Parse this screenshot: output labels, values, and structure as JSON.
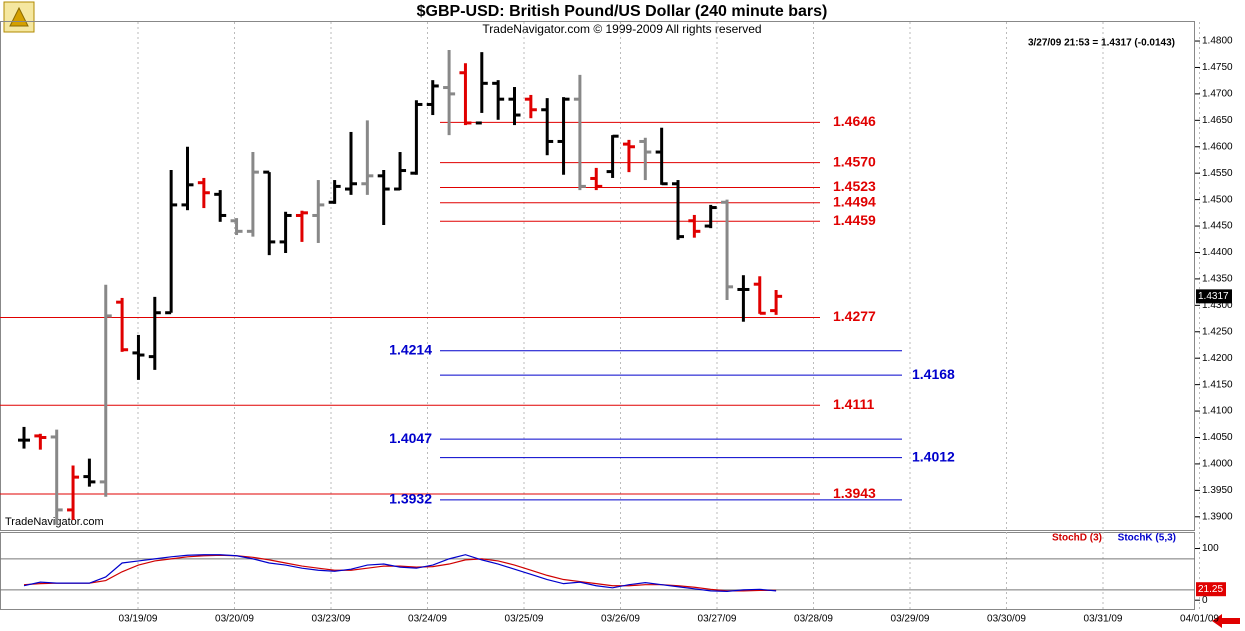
{
  "chart_data": {
    "type": "ohlc",
    "title": "$GBP-USD:  British Pound/US Dollar  (240 minute bars)",
    "subtitle": "TradeNavigator.com © 1999-2009 All rights reserved",
    "quote_label": "3/27/09 21:53 = 1.4317 (-0.0143)",
    "watermark": "TradeNavigator.com",
    "ylim": [
      1.3875,
      1.4836
    ],
    "yticks": [
      {
        "value": 1.39,
        "label": "1.3900"
      },
      {
        "value": 1.395,
        "label": "1.3950"
      },
      {
        "value": 1.4,
        "label": "1.4000"
      },
      {
        "value": 1.405,
        "label": "1.4050"
      },
      {
        "value": 1.41,
        "label": "1.4100"
      },
      {
        "value": 1.415,
        "label": "1.4150"
      },
      {
        "value": 1.42,
        "label": "1.4200"
      },
      {
        "value": 1.425,
        "label": "1.4250"
      },
      {
        "value": 1.43,
        "label": "1.4300"
      },
      {
        "value": 1.435,
        "label": "1.4350"
      },
      {
        "value": 1.44,
        "label": "1.4400"
      },
      {
        "value": 1.445,
        "label": "1.4450"
      },
      {
        "value": 1.45,
        "label": "1.4500"
      },
      {
        "value": 1.455,
        "label": "1.4550"
      },
      {
        "value": 1.46,
        "label": "1.4600"
      },
      {
        "value": 1.465,
        "label": "1.4650"
      },
      {
        "value": 1.47,
        "label": "1.4700"
      },
      {
        "value": 1.475,
        "label": "1.4750"
      },
      {
        "value": 1.48,
        "label": "1.4800"
      }
    ],
    "x_labels": [
      "03/19/09",
      "03/20/09",
      "03/23/09",
      "03/24/09",
      "03/25/09",
      "03/26/09",
      "03/27/09",
      "03/28/09",
      "03/29/09",
      "03/30/09",
      "03/31/09",
      "04/01/09"
    ],
    "ohlc": {
      "open": [
        1.4045,
        1.4053,
        1.4051,
        1.3913,
        1.3976,
        1.3966,
        1.4306,
        1.421,
        1.4203,
        1.4286,
        1.449,
        1.4532,
        1.451,
        1.446,
        1.444,
        1.4552,
        1.442,
        1.447,
        1.447,
        1.4495,
        1.452,
        1.453,
        1.4545,
        1.452,
        1.455,
        1.468,
        1.4712,
        1.474,
        1.4645,
        1.472,
        1.469,
        1.469,
        1.467,
        1.461,
        1.469,
        1.454,
        1.4553,
        1.4605,
        1.461,
        1.459,
        1.453,
        1.446,
        1.445,
        1.4495,
        1.433,
        1.434,
        1.429
      ],
      "high": [
        1.407,
        1.4057,
        1.4065,
        1.3997,
        1.401,
        1.4339,
        1.4314,
        1.4244,
        1.4316,
        1.4556,
        1.46,
        1.4541,
        1.4518,
        1.4465,
        1.459,
        1.4552,
        1.4477,
        1.4479,
        1.4537,
        1.4537,
        1.4628,
        1.465,
        1.4556,
        1.459,
        1.4688,
        1.4726,
        1.4783,
        1.4758,
        1.4779,
        1.4726,
        1.4713,
        1.4698,
        1.4692,
        1.4694,
        1.4736,
        1.456,
        1.4622,
        1.4613,
        1.4617,
        1.4636,
        1.4537,
        1.4471,
        1.449,
        1.45,
        1.4357,
        1.4355,
        1.4329
      ],
      "low": [
        1.4029,
        1.4027,
        1.3885,
        1.3894,
        1.3957,
        1.3938,
        1.4212,
        1.4159,
        1.4178,
        1.4286,
        1.448,
        1.4484,
        1.4458,
        1.4433,
        1.443,
        1.4395,
        1.4399,
        1.442,
        1.4418,
        1.4492,
        1.4509,
        1.4509,
        1.4452,
        1.4518,
        1.4547,
        1.466,
        1.4622,
        1.4641,
        1.4664,
        1.4651,
        1.4641,
        1.4654,
        1.4584,
        1.4547,
        1.4518,
        1.4518,
        1.4541,
        1.4552,
        1.4537,
        1.4528,
        1.4424,
        1.4428,
        1.4446,
        1.431,
        1.4269,
        1.4284,
        1.4282
      ],
      "close": [
        1.4045,
        1.405,
        1.3913,
        1.3975,
        1.3966,
        1.428,
        1.4216,
        1.4206,
        1.4286,
        1.449,
        1.4528,
        1.4513,
        1.447,
        1.444,
        1.4552,
        1.442,
        1.447,
        1.4475,
        1.449,
        1.4525,
        1.453,
        1.4545,
        1.452,
        1.4555,
        1.468,
        1.4715,
        1.47,
        1.4645,
        1.472,
        1.469,
        1.466,
        1.467,
        1.461,
        1.469,
        1.4525,
        1.4525,
        1.462,
        1.46,
        1.459,
        1.453,
        1.443,
        1.444,
        1.4485,
        1.4335,
        1.433,
        1.4285,
        1.4317
      ],
      "colors": [
        "#000000",
        "#e00000",
        "#888888",
        "#e00000",
        "#000000",
        "#888888",
        "#e00000",
        "#000000",
        "#000000",
        "#000000",
        "#000000",
        "#e00000",
        "#000000",
        "#888888",
        "#888888",
        "#000000",
        "#000000",
        "#e00000",
        "#888888",
        "#000000",
        "#000000",
        "#888888",
        "#000000",
        "#000000",
        "#000000",
        "#000000",
        "#888888",
        "#e00000",
        "#000000",
        "#000000",
        "#000000",
        "#e00000",
        "#000000",
        "#000000",
        "#888888",
        "#e00000",
        "#000000",
        "#e00000",
        "#888888",
        "#000000",
        "#000000",
        "#e00000",
        "#000000",
        "#888888",
        "#000000",
        "#e00000",
        "#e00000"
      ]
    },
    "last_price": {
      "value": 1.4317,
      "label": "1.4317"
    },
    "red_levels": {
      "color": "#e00000",
      "values": [
        1.4646,
        1.457,
        1.4523,
        1.4494,
        1.4459,
        1.4277,
        1.4111,
        1.3943
      ],
      "value_labels": [
        "1.4646",
        "1.4570",
        "1.4523",
        "1.4494",
        "1.4459",
        "1.4277",
        "1.4111",
        "1.3943"
      ]
    },
    "blue_levels": {
      "color": "#0000cc",
      "values": [
        1.4214,
        1.4168,
        1.4047,
        1.4012,
        1.3932
      ],
      "value_labels": [
        "1.4214",
        "1.4168",
        "1.4047",
        "1.4012",
        "1.3932"
      ]
    },
    "stochastic": {
      "ylim": [
        -19,
        132
      ],
      "yticks": [
        100,
        0
      ],
      "levels": [
        80,
        20
      ],
      "series": [
        {
          "name": "StochD (3)",
          "color": "#d00000",
          "values": [
            30,
            32,
            33,
            33,
            33,
            38,
            55,
            68,
            76,
            80,
            84,
            86,
            87,
            86,
            83,
            78,
            72,
            66,
            62,
            58,
            58,
            62,
            66,
            66,
            64,
            65,
            70,
            78,
            80,
            76,
            68,
            58,
            48,
            40,
            36,
            32,
            28,
            28,
            30,
            30,
            28,
            25,
            21,
            18,
            18,
            19,
            19
          ]
        },
        {
          "name": "StochK (5,3)",
          "color": "#0000cc",
          "values": [
            28,
            35,
            33,
            33,
            33,
            45,
            72,
            76,
            80,
            84,
            87,
            88,
            88,
            86,
            80,
            72,
            68,
            62,
            58,
            56,
            60,
            68,
            70,
            64,
            62,
            68,
            80,
            88,
            78,
            70,
            60,
            50,
            40,
            32,
            35,
            28,
            24,
            30,
            34,
            30,
            26,
            22,
            18,
            17,
            20,
            21,
            18
          ]
        }
      ],
      "last_value": {
        "value": 21.25,
        "label": "21.25"
      }
    }
  }
}
